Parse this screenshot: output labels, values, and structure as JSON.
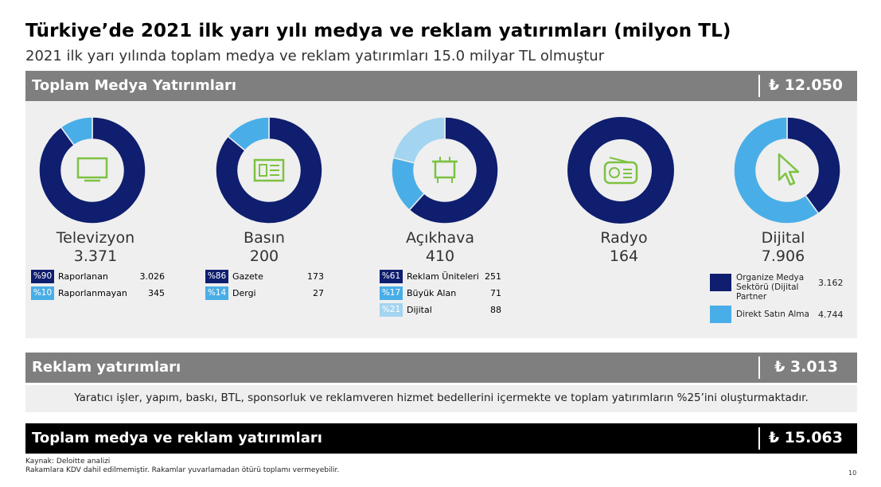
{
  "title": "Türkiye’de 2021 ilk yarı yılı medya ve reklam yatırımları (milyon TL)",
  "subtitle": "2021 ilk yarı yılında toplam medya ve reklam yatırımları 15.0 milyar TL olmuştur",
  "colors": {
    "dark": "#0f1e6e",
    "light": "#49aee7",
    "lighter": "#a3d4f0",
    "icon": "#7dc242",
    "bar": "#7f7f7f"
  },
  "media_bar": {
    "label": "Toplam Medya Yatırımları",
    "amount": "₺ 12.050"
  },
  "ad_bar": {
    "label": "Reklam yatırımları",
    "amount": "₺ 3.013"
  },
  "ad_note": "Yaratıcı işler, yapım, baskı, BTL, sponsorluk ve reklamveren hizmet bedellerini içermekte ve toplam yatırımların %25’ini oluşturmaktadır.",
  "total_bar": {
    "label": "Toplam medya ve reklam yatırımları",
    "amount": "₺ 15.063"
  },
  "footer": {
    "source": "Kaynak: Deloitte analizi",
    "note": "Rakamlara KDV dahil edilmemiştir. Rakamlar yuvarlamadan ötürü toplamı vermeyebilir.",
    "page": "10"
  },
  "chart_data": [
    {
      "type": "pie",
      "title": "Televizyon",
      "total": "3.371",
      "icon": "tv-icon",
      "slices": [
        {
          "pct": "%90",
          "label": "Raporlanan",
          "value": "3.026",
          "share": 90
        },
        {
          "pct": "%10",
          "label": "Raporlanmayan",
          "value": "345",
          "share": 10
        }
      ]
    },
    {
      "type": "pie",
      "title": "Basın",
      "total": "200",
      "icon": "newspaper-icon",
      "slices": [
        {
          "pct": "%86",
          "label": "Gazete",
          "value": "173",
          "share": 86
        },
        {
          "pct": "%14",
          "label": "Dergi",
          "value": "27",
          "share": 14
        }
      ]
    },
    {
      "type": "pie",
      "title": "Açıkhava",
      "total": "410",
      "icon": "billboard-icon",
      "slices": [
        {
          "pct": "%61",
          "label": "Reklam Üniteleri",
          "value": "251",
          "share": 61
        },
        {
          "pct": "%17",
          "label": "Büyük Alan",
          "value": "71",
          "share": 17
        },
        {
          "pct": "%21",
          "label": "Dijital",
          "value": "88",
          "share": 21
        }
      ]
    },
    {
      "type": "pie",
      "title": "Radyo",
      "total": "164",
      "icon": "radio-icon",
      "slices": [
        {
          "label": "Radyo",
          "value": "164",
          "share": 100
        }
      ]
    },
    {
      "type": "pie",
      "title": "Dijital",
      "total": "7.906",
      "icon": "cursor-icon",
      "slices": [
        {
          "label": "Organize Medya Sektörü (Dijital Partner",
          "value": "3.162",
          "share": 40
        },
        {
          "label": "Direkt Satın Alma",
          "value": "4.744",
          "share": 60
        }
      ]
    }
  ]
}
